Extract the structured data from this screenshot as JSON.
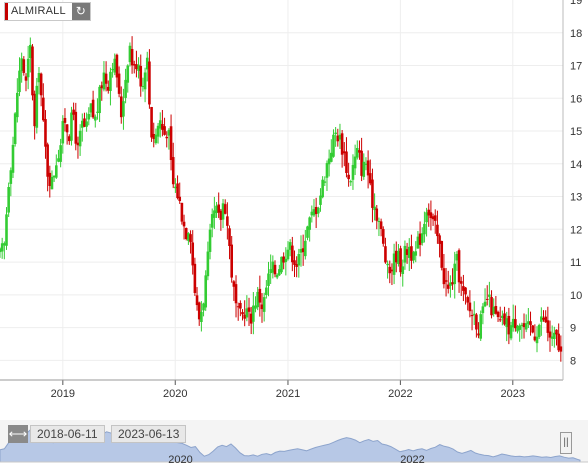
{
  "ticker": {
    "symbol": "ALMIRALL",
    "refresh_icon": "refresh-icon"
  },
  "navigator": {
    "start_date": "2018-06-11",
    "end_date": "2023-06-13",
    "year_labels": [
      "2020",
      "2022"
    ],
    "handle_icon": "resize-horizontal-icon"
  },
  "colors": {
    "up": "#33cc33",
    "down": "#cc0000",
    "navigator_fill": "#b7c8e6",
    "navigator_line": "#8da4cc",
    "axis": "#555555"
  },
  "chart_data": {
    "type": "candlestick",
    "x_tick_labels": [
      "2019",
      "2020",
      "2021",
      "2022",
      "2023"
    ],
    "y_tick_labels": [
      "8",
      "9",
      "10",
      "11",
      "12",
      "13",
      "14",
      "15",
      "16",
      "17",
      "18"
    ],
    "ylim": [
      7.4,
      19.0
    ],
    "xlim": [
      "2018-06-11",
      "2023-06-13"
    ],
    "grid": true,
    "close_path": [
      [
        "2018-06-11",
        11.2
      ],
      [
        "2018-06-25",
        11.5
      ],
      [
        "2018-07-09",
        13.5
      ],
      [
        "2018-07-23",
        14.6
      ],
      [
        "2018-08-06",
        16.2
      ],
      [
        "2018-08-20",
        17.3
      ],
      [
        "2018-09-03",
        16.4
      ],
      [
        "2018-09-17",
        17.6
      ],
      [
        "2018-10-01",
        15.0
      ],
      [
        "2018-10-15",
        17.1
      ],
      [
        "2018-10-29",
        15.2
      ],
      [
        "2018-11-12",
        13.8
      ],
      [
        "2018-11-26",
        13.4
      ],
      [
        "2018-12-10",
        14.1
      ],
      [
        "2018-12-24",
        14.6
      ],
      [
        "2019-01-07",
        15.4
      ],
      [
        "2019-01-21",
        14.9
      ],
      [
        "2019-02-04",
        15.6
      ],
      [
        "2019-02-18",
        14.3
      ],
      [
        "2019-03-04",
        15.2
      ],
      [
        "2019-03-18",
        15.0
      ],
      [
        "2019-04-01",
        15.7
      ],
      [
        "2019-04-15",
        15.3
      ],
      [
        "2019-04-29",
        16.0
      ],
      [
        "2019-05-13",
        16.8
      ],
      [
        "2019-05-27",
        16.4
      ],
      [
        "2019-06-10",
        17.2
      ],
      [
        "2019-06-24",
        16.9
      ],
      [
        "2019-07-08",
        15.4
      ],
      [
        "2019-07-22",
        16.5
      ],
      [
        "2019-08-05",
        17.7
      ],
      [
        "2019-08-19",
        16.8
      ],
      [
        "2019-09-02",
        17.3
      ],
      [
        "2019-09-16",
        16.2
      ],
      [
        "2019-09-30",
        17.5
      ],
      [
        "2019-10-14",
        15.0
      ],
      [
        "2019-10-28",
        14.8
      ],
      [
        "2019-11-11",
        15.4
      ],
      [
        "2019-11-25",
        14.9
      ],
      [
        "2019-12-09",
        15.1
      ],
      [
        "2019-12-23",
        13.4
      ],
      [
        "2020-01-06",
        13.2
      ],
      [
        "2020-01-20",
        12.6
      ],
      [
        "2020-02-03",
        11.9
      ],
      [
        "2020-02-17",
        12.2
      ],
      [
        "2020-03-02",
        10.4
      ],
      [
        "2020-03-16",
        9.2
      ],
      [
        "2020-03-30",
        9.7
      ],
      [
        "2020-04-13",
        10.8
      ],
      [
        "2020-04-27",
        12.1
      ],
      [
        "2020-05-11",
        12.6
      ],
      [
        "2020-05-25",
        12.2
      ],
      [
        "2020-06-08",
        13.0
      ],
      [
        "2020-06-22",
        11.8
      ],
      [
        "2020-07-06",
        10.3
      ],
      [
        "2020-07-20",
        9.4
      ],
      [
        "2020-08-03",
        9.3
      ],
      [
        "2020-08-17",
        9.6
      ],
      [
        "2020-08-31",
        9.2
      ],
      [
        "2020-09-14",
        9.8
      ],
      [
        "2020-09-28",
        10.0
      ],
      [
        "2020-10-12",
        9.6
      ],
      [
        "2020-10-26",
        10.4
      ],
      [
        "2020-11-09",
        10.8
      ],
      [
        "2020-11-23",
        10.7
      ],
      [
        "2020-12-07",
        11.0
      ],
      [
        "2020-12-21",
        11.3
      ],
      [
        "2021-01-04",
        11.5
      ],
      [
        "2021-01-18",
        11.2
      ],
      [
        "2021-02-01",
        10.9
      ],
      [
        "2021-02-15",
        11.4
      ],
      [
        "2021-03-01",
        11.9
      ],
      [
        "2021-03-15",
        12.3
      ],
      [
        "2021-03-29",
        12.6
      ],
      [
        "2021-04-12",
        12.9
      ],
      [
        "2021-04-26",
        13.5
      ],
      [
        "2021-05-10",
        14.1
      ],
      [
        "2021-05-24",
        14.6
      ],
      [
        "2021-06-07",
        15.0
      ],
      [
        "2021-06-21",
        14.7
      ],
      [
        "2021-07-05",
        14.2
      ],
      [
        "2021-07-19",
        13.4
      ],
      [
        "2021-08-02",
        14.0
      ],
      [
        "2021-08-16",
        14.4
      ],
      [
        "2021-08-30",
        13.8
      ],
      [
        "2021-09-13",
        14.1
      ],
      [
        "2021-09-27",
        13.0
      ],
      [
        "2021-10-11",
        12.7
      ],
      [
        "2021-10-25",
        12.2
      ],
      [
        "2021-11-08",
        11.4
      ],
      [
        "2021-11-22",
        10.6
      ],
      [
        "2021-12-06",
        10.9
      ],
      [
        "2021-12-20",
        11.3
      ],
      [
        "2022-01-03",
        10.9
      ],
      [
        "2022-01-17",
        11.3
      ],
      [
        "2022-01-31",
        11.5
      ],
      [
        "2022-02-14",
        11.0
      ],
      [
        "2022-02-28",
        11.6
      ],
      [
        "2022-03-14",
        12.0
      ],
      [
        "2022-03-28",
        12.8
      ],
      [
        "2022-04-11",
        12.3
      ],
      [
        "2022-04-25",
        12.0
      ],
      [
        "2022-05-09",
        11.4
      ],
      [
        "2022-05-23",
        10.5
      ],
      [
        "2022-06-06",
        10.1
      ],
      [
        "2022-06-20",
        10.5
      ],
      [
        "2022-07-04",
        11.0
      ],
      [
        "2022-07-18",
        10.2
      ],
      [
        "2022-08-01",
        9.8
      ],
      [
        "2022-08-15",
        9.5
      ],
      [
        "2022-08-29",
        9.4
      ],
      [
        "2022-09-12",
        9.0
      ],
      [
        "2022-09-26",
        9.4
      ],
      [
        "2022-10-10",
        9.9
      ],
      [
        "2022-10-24",
        9.6
      ],
      [
        "2022-11-07",
        9.3
      ],
      [
        "2022-11-21",
        9.1
      ],
      [
        "2022-12-05",
        9.2
      ],
      [
        "2022-12-19",
        9.0
      ],
      [
        "2023-01-02",
        9.1
      ],
      [
        "2023-01-16",
        9.3
      ],
      [
        "2023-01-30",
        9.1
      ],
      [
        "2023-02-13",
        8.9
      ],
      [
        "2023-02-27",
        9.0
      ],
      [
        "2023-03-13",
        8.8
      ],
      [
        "2023-03-27",
        9.1
      ],
      [
        "2023-04-10",
        9.3
      ],
      [
        "2023-04-24",
        8.9
      ],
      [
        "2023-05-08",
        8.6
      ],
      [
        "2023-05-22",
        8.7
      ],
      [
        "2023-06-05",
        8.2
      ],
      [
        "2023-06-13",
        8.0
      ]
    ]
  }
}
